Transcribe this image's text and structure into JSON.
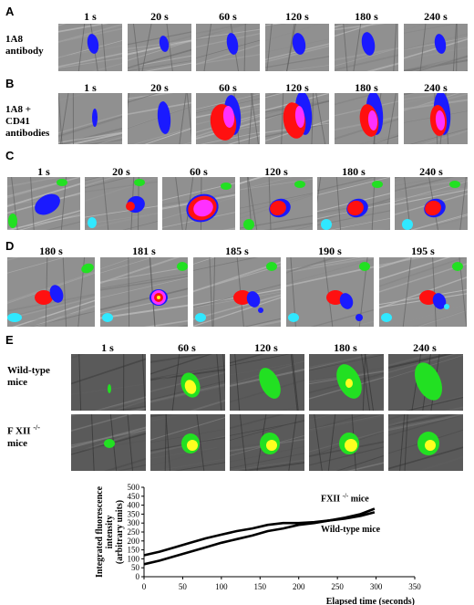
{
  "panels": {
    "A": {
      "letter": "A",
      "row_label_lines": [
        "1A8",
        "antibody"
      ],
      "times": [
        "1 s",
        "20 s",
        "60 s",
        "120 s",
        "180 s",
        "240 s"
      ]
    },
    "B": {
      "letter": "B",
      "row_label_lines": [
        "1A8 +",
        "CD41",
        "antibodies"
      ],
      "times": [
        "1 s",
        "20 s",
        "60 s",
        "120 s",
        "180 s",
        "240 s"
      ]
    },
    "C": {
      "letter": "C",
      "times": [
        "1 s",
        "20 s",
        "60 s",
        "120 s",
        "180 s",
        "240 s"
      ]
    },
    "D": {
      "letter": "D",
      "times": [
        "180 s",
        "181 s",
        "185 s",
        "190 s",
        "195 s"
      ]
    },
    "E": {
      "letter": "E",
      "times": [
        "1 s",
        "60 s",
        "120 s",
        "180 s",
        "240 s"
      ],
      "rows": [
        {
          "label_lines": [
            "Wild-type",
            "mice"
          ]
        },
        {
          "label_lines": [
            "F XII",
            "mice"
          ],
          "superscript": "-/-"
        }
      ]
    }
  },
  "colors": {
    "blue": "#1a1aff",
    "red": "#ff1010",
    "magenta": "#ff30ff",
    "green": "#22e022",
    "yellow": "#ffff20",
    "cyan": "#30e8ff"
  },
  "chart_data": {
    "type": "line",
    "ylabel_lines": [
      "Integrated fluorescence",
      "intensity",
      "(arbitrary units)"
    ],
    "xlabel": "Elapsed time (seconds)",
    "xlim": [
      0,
      350
    ],
    "ylim": [
      0,
      500
    ],
    "xticks": [
      "0",
      "50",
      "100",
      "150",
      "200",
      "250",
      "300",
      "350"
    ],
    "yticks": [
      "0",
      "50",
      "100",
      "150",
      "200",
      "250",
      "300",
      "350",
      "400",
      "450",
      "500"
    ],
    "series": [
      {
        "name": "FXII -/- mice",
        "name_base": "FXII",
        "name_sup": "-/-",
        "name_suffix": "mice",
        "x": [
          0,
          20,
          40,
          60,
          80,
          100,
          120,
          140,
          160,
          180,
          200,
          220,
          240,
          260,
          280,
          298
        ],
        "y": [
          70,
          90,
          115,
          140,
          165,
          190,
          210,
          230,
          255,
          270,
          290,
          300,
          315,
          330,
          350,
          380
        ]
      },
      {
        "name": "Wild-type mice",
        "x": [
          0,
          20,
          40,
          60,
          80,
          100,
          120,
          140,
          160,
          180,
          200,
          220,
          240,
          260,
          280,
          298
        ],
        "y": [
          120,
          140,
          165,
          190,
          215,
          235,
          255,
          270,
          290,
          300,
          300,
          305,
          315,
          325,
          340,
          360
        ]
      }
    ]
  }
}
